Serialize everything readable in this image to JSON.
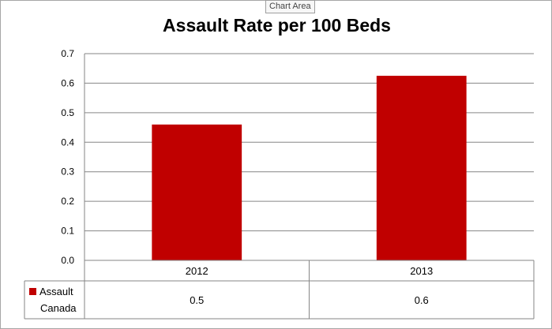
{
  "ui": {
    "tooltip": "Chart Area"
  },
  "chart_data": {
    "type": "bar",
    "title": "Assault Rate per 100 Beds",
    "xlabel": "",
    "ylabel": "",
    "categories": [
      "2012",
      "2013"
    ],
    "series": [
      {
        "name": "Assault Canada",
        "name_lines": [
          "Assault",
          "Canada"
        ],
        "values": [
          0.46,
          0.625
        ],
        "color": "#c00000"
      }
    ],
    "ylim": [
      0,
      0.7
    ],
    "yticks": [
      "0.0",
      "0.1",
      "0.2",
      "0.3",
      "0.4",
      "0.5",
      "0.6",
      "0.7"
    ],
    "data_table": {
      "values": [
        "0.5",
        "0.6"
      ]
    },
    "grid": true,
    "legend": "data-table"
  }
}
